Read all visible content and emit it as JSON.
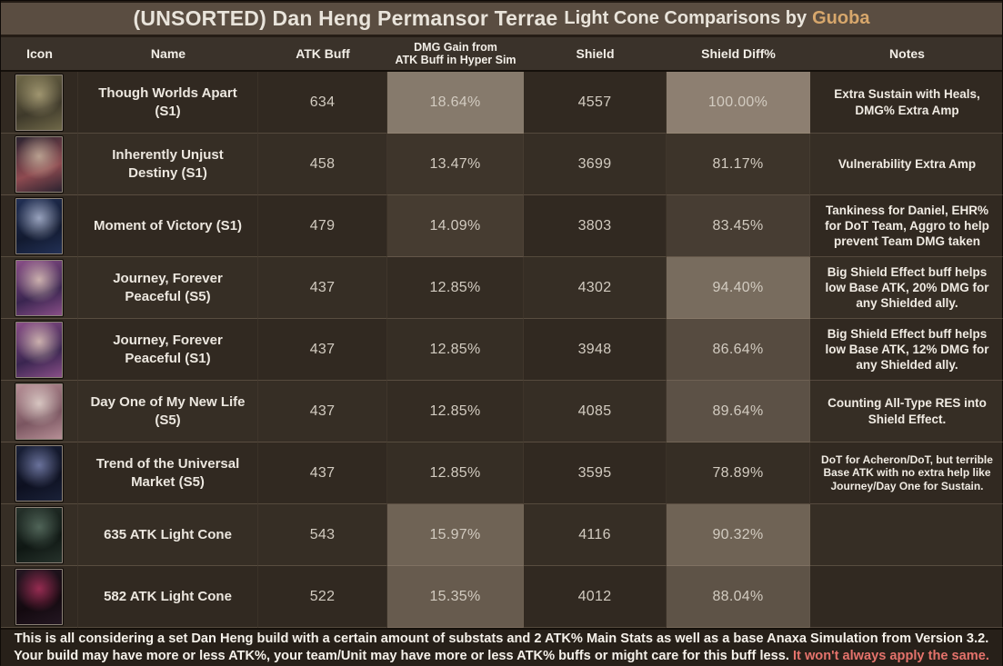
{
  "title": {
    "main": "(UNSORTED) Dan Heng Permansor Terrae",
    "sub": "Light Cone Comparisons by",
    "author": "Guoba",
    "author_color": "#d7a76c",
    "bar_bg": "#5a4d41"
  },
  "table": {
    "columns": [
      {
        "label": "Icon"
      },
      {
        "label": "Name"
      },
      {
        "label": "ATK Buff"
      },
      {
        "label": "DMG Gain from\nATK Buff in Hyper Sim",
        "small": true
      },
      {
        "label": "Shield"
      },
      {
        "label": "Shield Diff%"
      },
      {
        "label": "Notes"
      }
    ],
    "rows": [
      {
        "name": "Though Worlds Apart (S1)",
        "atk_buff": "634",
        "dmg_gain": "18.64%",
        "dmg_gain_bg": "#867a6c",
        "shield": "4557",
        "shield_diff": "100.00%",
        "shield_diff_bg": "#8d7f71",
        "notes": "Extra Sustain with Heals, DMG% Extra Amp",
        "icon": {
          "name": "though-worlds-apart-icon",
          "colors": [
            "#6f6848",
            "#3e392a",
            "#b3a87e"
          ]
        }
      },
      {
        "name": "Inherently Unjust Destiny (S1)",
        "atk_buff": "458",
        "dmg_gain": "13.47%",
        "dmg_gain_bg": "#3e352b",
        "shield": "3699",
        "shield_diff": "81.17%",
        "shield_diff_bg": "#3d342a",
        "notes": "Vulnerability Extra Amp",
        "icon": {
          "name": "inherently-unjust-destiny-icon",
          "colors": [
            "#2b2330",
            "#8e4a50",
            "#cbb8a2"
          ]
        }
      },
      {
        "name": "Moment of Victory (S1)",
        "atk_buff": "479",
        "dmg_gain": "14.09%",
        "dmg_gain_bg": "#463c31",
        "shield": "3803",
        "shield_diff": "83.45%",
        "shield_diff_bg": "#473d33",
        "notes": "Tankiness for Daniel, EHR% for DoT Team, Aggro to help prevent Team DMG taken",
        "icon": {
          "name": "moment-of-victory-icon",
          "colors": [
            "#223055",
            "#121a30",
            "#b8c2dd"
          ]
        }
      },
      {
        "name": "Journey, Forever Peaceful (S5)",
        "atk_buff": "437",
        "dmg_gain": "12.85%",
        "dmg_gain_bg": "#342c23",
        "shield": "4302",
        "shield_diff": "94.40%",
        "shield_diff_bg": "#786c5e",
        "notes": "Big Shield Effect buff helps low Base ATK, 20% DMG for any Shielded ally.",
        "icon": {
          "name": "journey-forever-peaceful-icon",
          "colors": [
            "#8a4f88",
            "#3a2550",
            "#e8cfc0"
          ]
        }
      },
      {
        "name": "Journey, Forever Peaceful (S1)",
        "atk_buff": "437",
        "dmg_gain": "12.85%",
        "dmg_gain_bg": "#362e25",
        "shield": "3948",
        "shield_diff": "86.64%",
        "shield_diff_bg": "#564b40",
        "notes": "Big Shield Effect buff helps low Base ATK, 12% DMG for any Shielded ally.",
        "icon": {
          "name": "journey-forever-peaceful-icon",
          "colors": [
            "#8a4f88",
            "#3a2550",
            "#e8cfc0"
          ]
        }
      },
      {
        "name": "Day One of My New Life (S5)",
        "atk_buff": "437",
        "dmg_gain": "12.85%",
        "dmg_gain_bg": "#342c23",
        "shield": "4085",
        "shield_diff": "89.64%",
        "shield_diff_bg": "#5c5146",
        "notes": "Counting All-Type RES into Shield Effect.",
        "icon": {
          "name": "day-one-of-my-new-life-icon",
          "colors": [
            "#b68f96",
            "#7a5560",
            "#e8dcd4"
          ]
        }
      },
      {
        "name": "Trend of the Universal Market (S5)",
        "atk_buff": "437",
        "dmg_gain": "12.85%",
        "dmg_gain_bg": "#362e25",
        "shield": "3595",
        "shield_diff": "78.89%",
        "shield_diff_bg": "#362e25",
        "notes": "DoT for Acheron/DoT, but terrible Base ATK with no extra help like Journey/Day One for Sustain.",
        "icon": {
          "name": "trend-of-the-universal-market-icon",
          "colors": [
            "#1a2138",
            "#0d1020",
            "#8089b8"
          ]
        }
      },
      {
        "name": "635 ATK Light Cone",
        "atk_buff": "543",
        "dmg_gain": "15.97%",
        "dmg_gain_bg": "#6f6355",
        "shield": "4116",
        "shield_diff": "90.32%",
        "shield_diff_bg": "#6f6355",
        "notes": "",
        "icon": {
          "name": "635-atk-light-cone-icon",
          "colors": [
            "#26322b",
            "#0f1713",
            "#5e7567"
          ]
        }
      },
      {
        "name": "582 ATK Light Cone",
        "atk_buff": "522",
        "dmg_gain": "15.35%",
        "dmg_gain_bg": "#675b4e",
        "shield": "4012",
        "shield_diff": "88.04%",
        "shield_diff_bg": "#5e5347",
        "notes": "",
        "icon": {
          "name": "582-atk-light-cone-icon",
          "colors": [
            "#241722",
            "#13090f",
            "#b53360"
          ]
        }
      }
    ]
  },
  "footer": {
    "text_before": "This is all considering a set Dan Heng build with a certain amount of substats and 2 ATK% Main Stats as well as a base Anaxa Simulation from Version 3.2. Your build may have more or less ATK%, your team/Unit may have more or less ATK% buffs or might care for this buff less. ",
    "highlight": "It won't always apply the same.",
    "highlight_color": "#e5736c"
  }
}
